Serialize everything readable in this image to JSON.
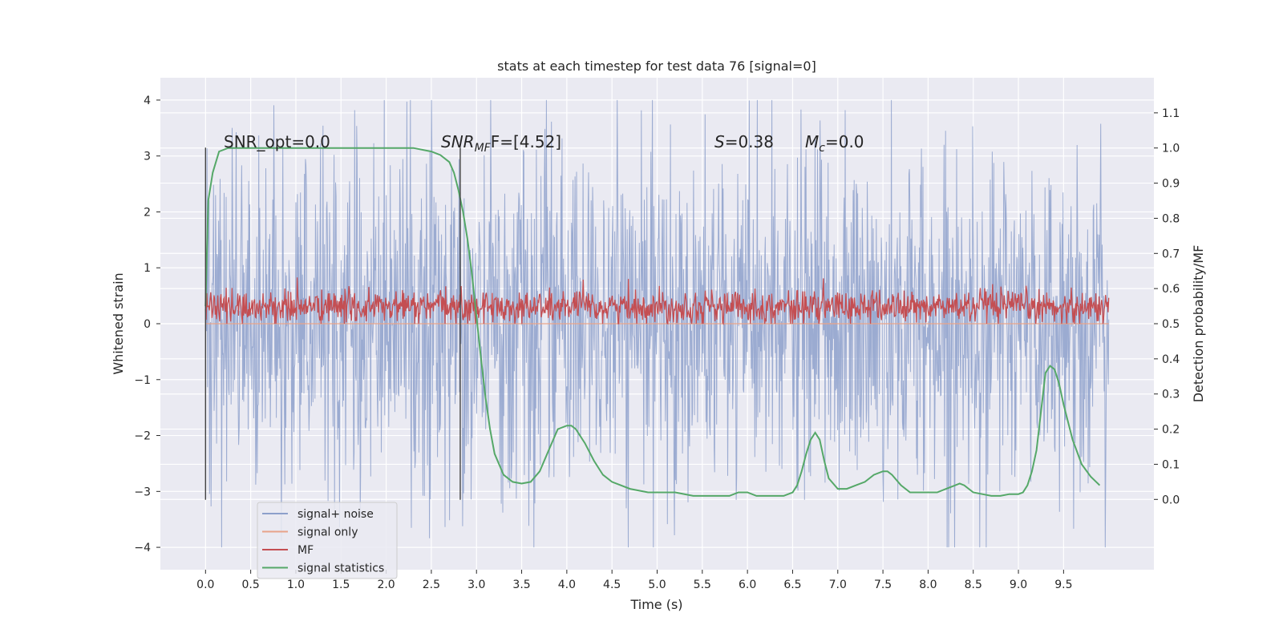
{
  "chart_data": {
    "type": "line",
    "title": "stats at each timestep for test data 76 [signal=0]",
    "xlabel": "Time (s)",
    "ylabel": "Whitened strain",
    "ylabel_right": "Detection probability/MF",
    "xlim": [
      -0.5,
      10.5
    ],
    "ylim": [
      -4.4,
      4.4
    ],
    "ylim_right": [
      -0.2,
      1.2
    ],
    "x_ticks": [
      "0.0",
      "0.5",
      "1.0",
      "1.5",
      "2.0",
      "2.5",
      "3.0",
      "3.5",
      "4.0",
      "4.5",
      "5.0",
      "5.5",
      "6.0",
      "6.5",
      "7.0",
      "7.5",
      "8.0",
      "8.5",
      "9.0",
      "9.5"
    ],
    "y_ticks": [
      "4",
      "3",
      "2",
      "1",
      "0",
      "−1",
      "−2",
      "−3",
      "−4"
    ],
    "y_ticks_right": [
      "1.1",
      "1.0",
      "0.9",
      "0.8",
      "0.7",
      "0.6",
      "0.5",
      "0.4",
      "0.3",
      "0.2",
      "0.1",
      "0.0"
    ],
    "grid": true,
    "legend_position": "lower-left",
    "vlines": [
      0.0,
      2.82
    ],
    "annotations": {
      "snr_opt": "SNR_opt=0.0",
      "snr_mf_prefix": "SNR",
      "snr_mf_sub": "MF",
      "snr_mf_suffix": "F=[4.52]",
      "s_label": "S",
      "s_value": "=0.38",
      "mc_label": "M",
      "mc_sub": "c",
      "mc_value": "=0.0"
    },
    "series": [
      {
        "name": "signal+ noise",
        "color": "#8da0cb",
        "kind": "noise",
        "x_range": [
          0,
          10
        ],
        "envelope": [
          -2.5,
          2.5
        ],
        "peak": [
          -4.0,
          4.0
        ]
      },
      {
        "name": "signal only",
        "color": "#e8a389",
        "kind": "flat",
        "value": 0
      },
      {
        "name": "MF",
        "color": "#c44e52",
        "kind": "noise",
        "x_range": [
          0,
          10
        ],
        "center": 0.3,
        "envelope": [
          0.05,
          0.55
        ],
        "peak": [
          0.0,
          0.9
        ]
      },
      {
        "name": "signal statistics",
        "color": "#55a868",
        "kind": "line",
        "axis": "right",
        "x": [
          0.0,
          0.03,
          0.08,
          0.15,
          0.25,
          0.4,
          0.6,
          1.0,
          1.5,
          2.0,
          2.3,
          2.5,
          2.6,
          2.7,
          2.75,
          2.8,
          2.85,
          2.9,
          2.95,
          3.0,
          3.05,
          3.1,
          3.15,
          3.2,
          3.3,
          3.4,
          3.5,
          3.6,
          3.7,
          3.8,
          3.9,
          4.0,
          4.05,
          4.1,
          4.2,
          4.3,
          4.4,
          4.5,
          4.7,
          4.9,
          5.0,
          5.2,
          5.4,
          5.6,
          5.8,
          5.9,
          6.0,
          6.1,
          6.2,
          6.4,
          6.5,
          6.55,
          6.6,
          6.65,
          6.7,
          6.75,
          6.8,
          6.85,
          6.9,
          7.0,
          7.1,
          7.2,
          7.3,
          7.4,
          7.5,
          7.55,
          7.6,
          7.7,
          7.8,
          7.9,
          8.0,
          8.1,
          8.2,
          8.3,
          8.35,
          8.4,
          8.5,
          8.6,
          8.7,
          8.8,
          8.9,
          9.0,
          9.05,
          9.1,
          9.15,
          9.2,
          9.25,
          9.3,
          9.35,
          9.4,
          9.45,
          9.5,
          9.6,
          9.7,
          9.8,
          9.9
        ],
        "y": [
          0.55,
          0.85,
          0.93,
          0.99,
          1.0,
          1.0,
          1.0,
          1.0,
          1.0,
          1.0,
          1.0,
          0.99,
          0.98,
          0.96,
          0.93,
          0.88,
          0.82,
          0.74,
          0.64,
          0.52,
          0.4,
          0.29,
          0.2,
          0.13,
          0.07,
          0.05,
          0.045,
          0.05,
          0.08,
          0.14,
          0.2,
          0.21,
          0.21,
          0.2,
          0.16,
          0.11,
          0.07,
          0.05,
          0.03,
          0.02,
          0.02,
          0.02,
          0.01,
          0.01,
          0.01,
          0.02,
          0.02,
          0.01,
          0.01,
          0.01,
          0.02,
          0.04,
          0.08,
          0.13,
          0.17,
          0.19,
          0.17,
          0.11,
          0.06,
          0.03,
          0.03,
          0.04,
          0.05,
          0.07,
          0.08,
          0.08,
          0.07,
          0.04,
          0.02,
          0.02,
          0.02,
          0.02,
          0.03,
          0.04,
          0.045,
          0.04,
          0.02,
          0.015,
          0.01,
          0.01,
          0.015,
          0.015,
          0.02,
          0.04,
          0.08,
          0.14,
          0.25,
          0.36,
          0.38,
          0.37,
          0.33,
          0.27,
          0.17,
          0.1,
          0.065,
          0.04
        ]
      }
    ]
  }
}
